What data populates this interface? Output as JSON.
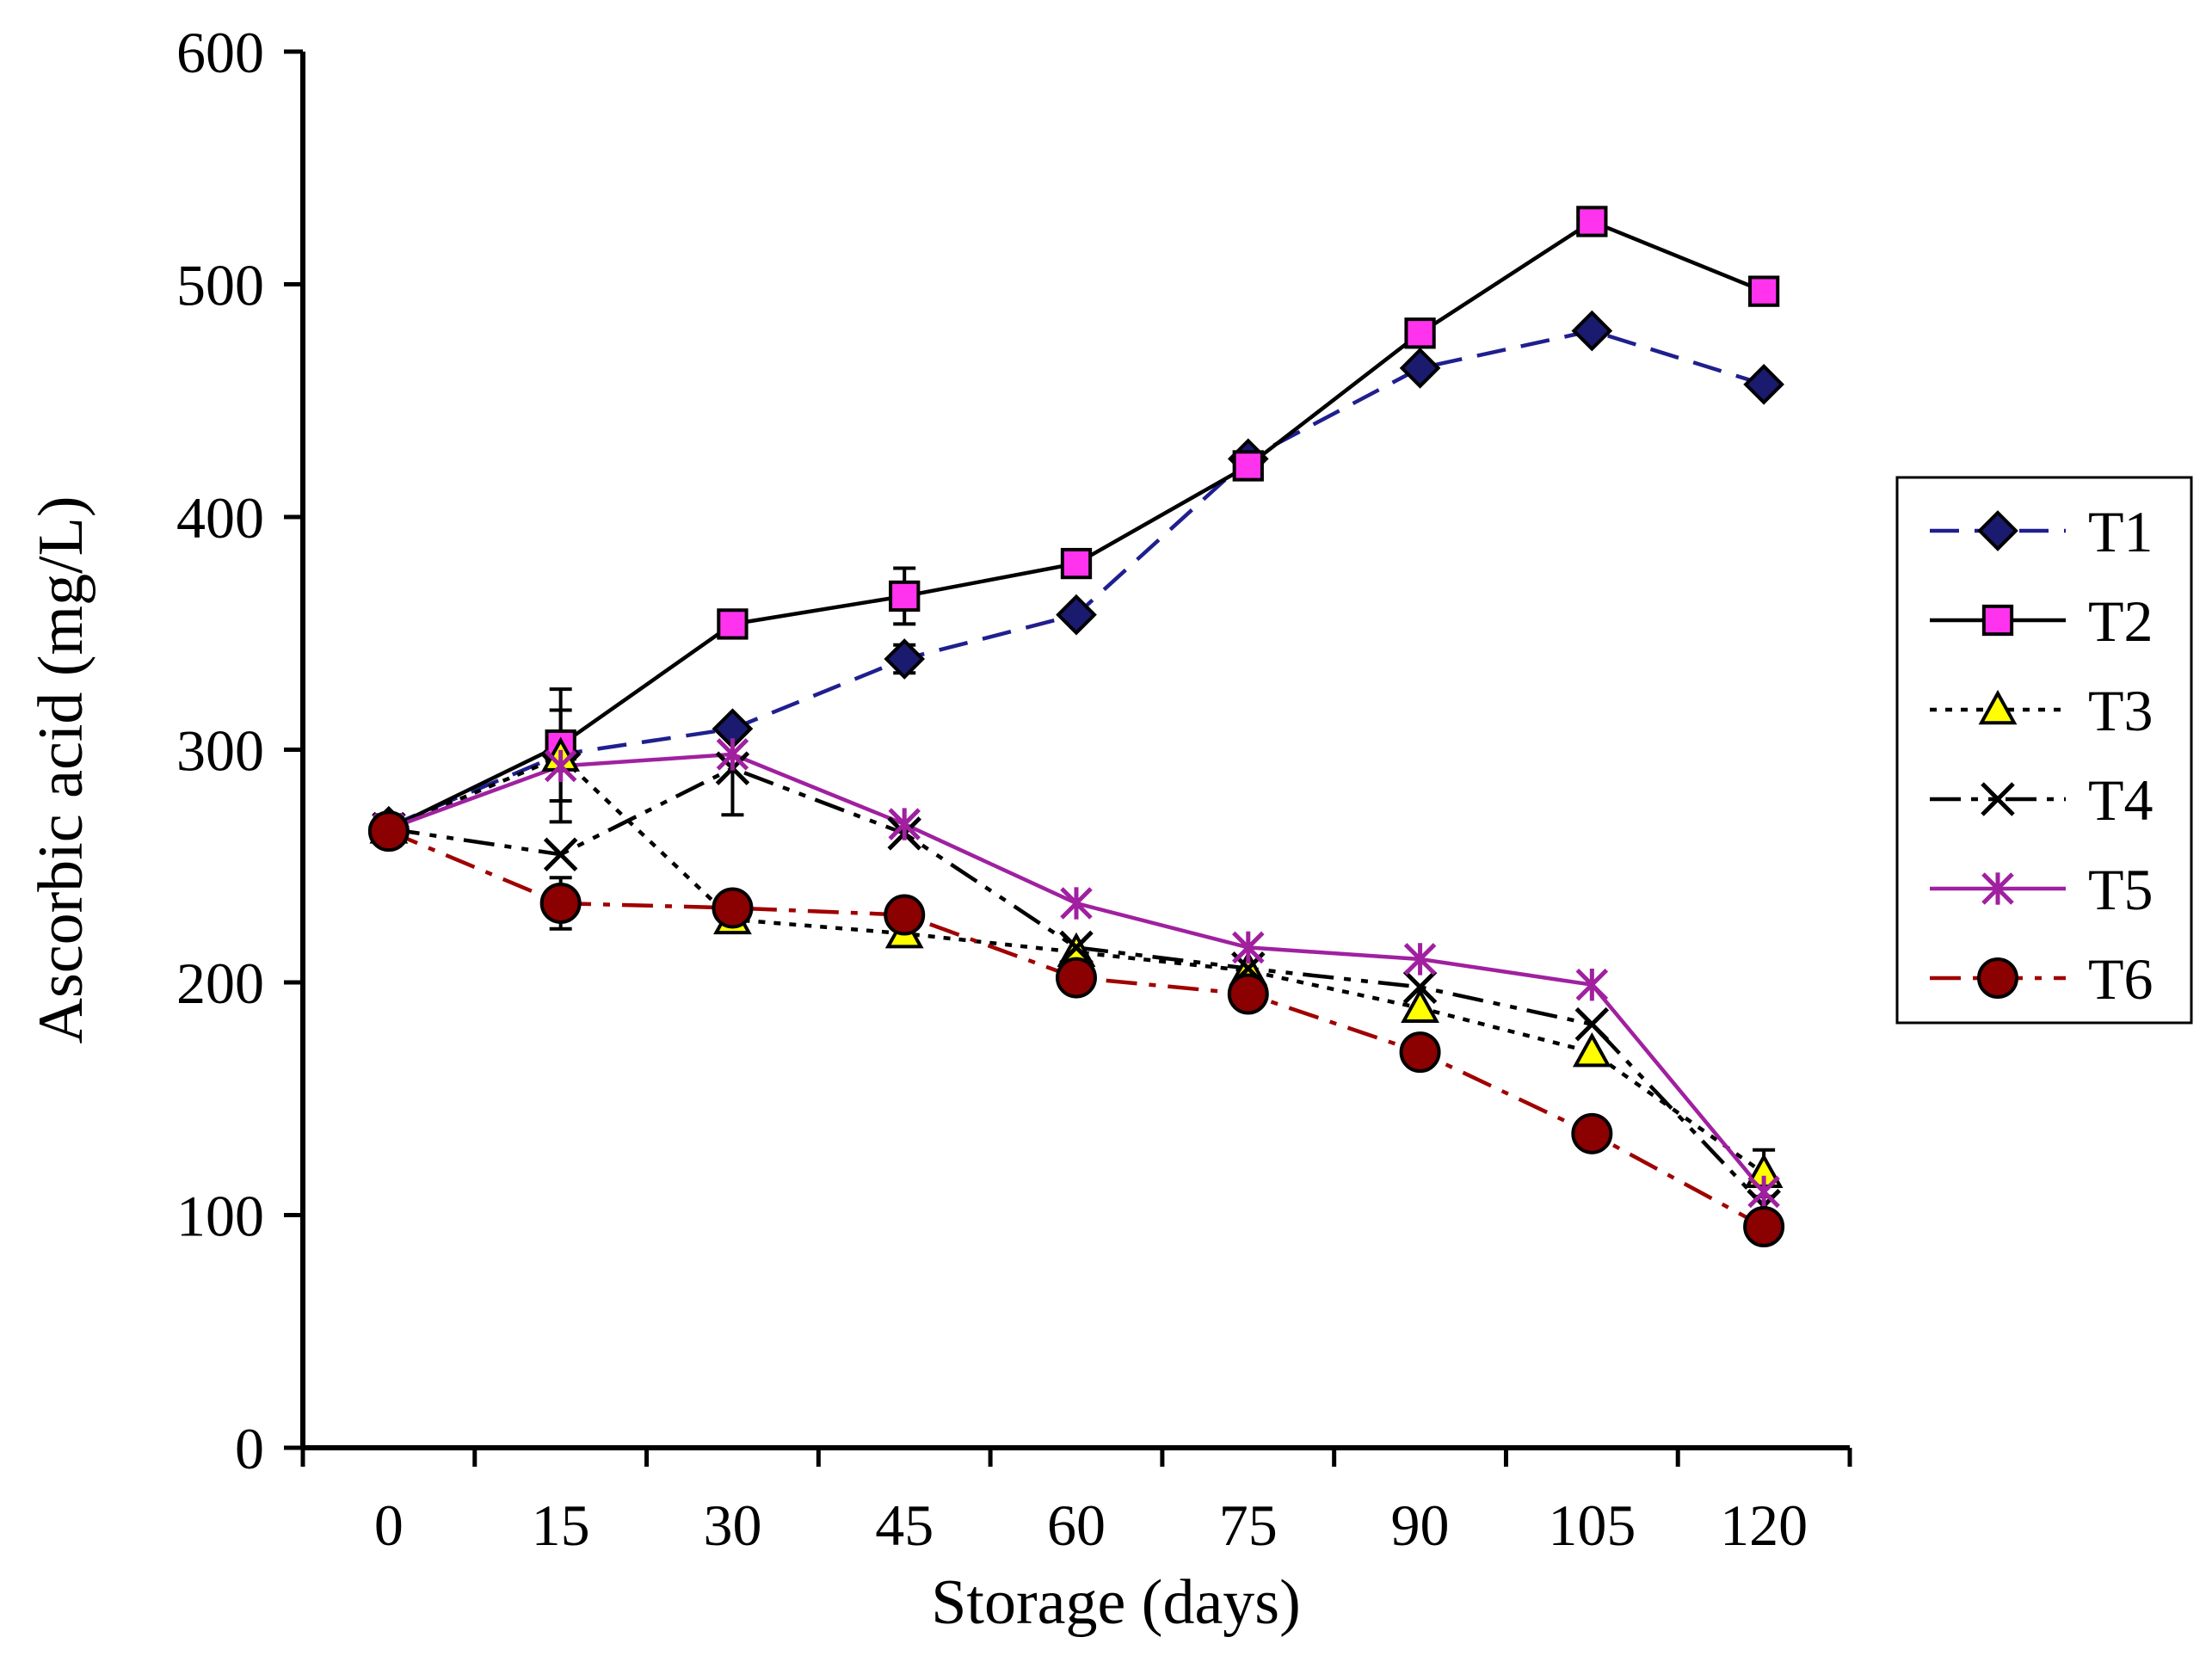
{
  "chart_data": {
    "type": "line",
    "title": "",
    "xlabel": "Storage (days)",
    "ylabel": "Ascorbic acid (mg/L)",
    "x": [
      0,
      15,
      30,
      45,
      60,
      75,
      90,
      105,
      120
    ],
    "xticks": [
      "0",
      "15",
      "30",
      "45",
      "60",
      "75",
      "90",
      "105",
      "120"
    ],
    "yticks": [
      "0",
      "100",
      "200",
      "300",
      "400",
      "500",
      "600"
    ],
    "ylim": [
      0,
      600
    ],
    "grid": false,
    "legend_position": "right",
    "series": [
      {
        "name": "T1",
        "values": [
          267,
          298,
          309,
          339,
          358,
          425,
          464,
          480,
          457
        ],
        "errors": [
          0,
          0,
          0,
          6,
          0,
          0,
          0,
          0,
          0
        ],
        "color": "#1f1f8f",
        "marker_fill": "#1a1a6e",
        "marker": "diamond",
        "dash": "dash"
      },
      {
        "name": "T2",
        "values": [
          266,
          302,
          354,
          366,
          380,
          422,
          479,
          527,
          497
        ],
        "errors": [
          0,
          24,
          0,
          12,
          0,
          0,
          0,
          0,
          0
        ],
        "color": "#000000",
        "marker_fill": "#ff33ee",
        "marker": "square",
        "dash": "solid"
      },
      {
        "name": "T3",
        "values": [
          266,
          297,
          227,
          221,
          213,
          205,
          189,
          170,
          118
        ],
        "errors": [
          0,
          0,
          0,
          0,
          0,
          0,
          0,
          0,
          10
        ],
        "color": "#000000",
        "marker_fill": "#ffff00",
        "marker": "triangle",
        "dash": "dot"
      },
      {
        "name": "T4",
        "values": [
          266,
          255,
          292,
          264,
          215,
          206,
          198,
          182,
          104
        ],
        "errors": [
          0,
          0,
          20,
          0,
          0,
          0,
          0,
          0,
          0
        ],
        "color": "#000000",
        "marker_fill": "none",
        "marker": "x",
        "dash": "dashdotdot"
      },
      {
        "name": "T5",
        "values": [
          266,
          293,
          298,
          268,
          234,
          215,
          210,
          199,
          110
        ],
        "errors": [
          0,
          24,
          0,
          0,
          0,
          0,
          0,
          0,
          0
        ],
        "color": "#a020a0",
        "marker_fill": "none",
        "marker": "star",
        "dash": "solid"
      },
      {
        "name": "T6",
        "values": [
          265,
          234,
          232,
          229,
          202,
          195,
          170,
          135,
          95
        ],
        "errors": [
          0,
          11,
          0,
          0,
          0,
          0,
          0,
          0,
          0
        ],
        "color": "#a00000",
        "marker_fill": "#8b0000",
        "marker": "circle",
        "dash": "dashdot"
      }
    ]
  }
}
